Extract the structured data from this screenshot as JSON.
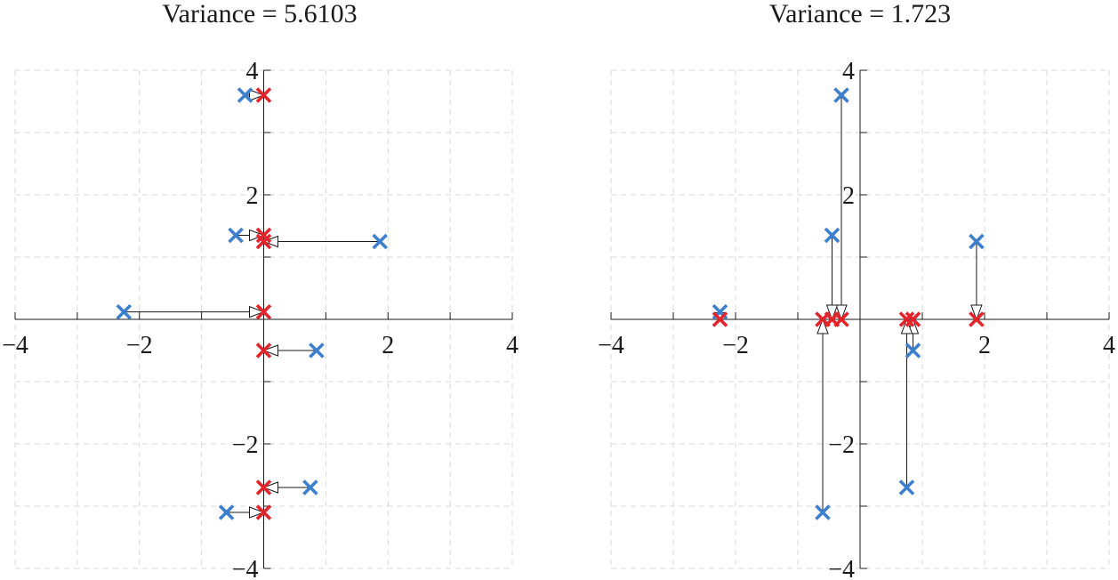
{
  "chart_data": [
    {
      "type": "scatter",
      "title": "Variance = 5.6103",
      "xlim": [
        -4,
        4
      ],
      "ylim": [
        -4,
        4
      ],
      "xticks": [
        -4,
        -2,
        2,
        4
      ],
      "yticks": [
        -4,
        -2,
        2,
        4
      ],
      "xtick_labels": [
        "−4",
        "−2",
        "2",
        "4"
      ],
      "ytick_labels": [
        "−4",
        "−2",
        "2",
        "4"
      ],
      "grid": true,
      "grid_step": 1,
      "series": [
        {
          "marker": "x",
          "color": "#3d7fcf",
          "points": [
            [
              -0.3,
              3.6
            ],
            [
              -0.45,
              1.35
            ],
            [
              1.87,
              1.25
            ],
            [
              -2.25,
              0.12
            ],
            [
              0.85,
              -0.5
            ],
            [
              0.75,
              -2.7
            ],
            [
              -0.6,
              -3.1
            ]
          ]
        },
        {
          "marker": "x",
          "color": "#e3242b",
          "points": [
            [
              0,
              3.6
            ],
            [
              0,
              1.35
            ],
            [
              0,
              1.25
            ],
            [
              0,
              0.12
            ],
            [
              0,
              -0.5
            ],
            [
              0,
              -2.7
            ],
            [
              0,
              -3.1
            ]
          ]
        }
      ],
      "arrows": [
        {
          "from": [
            -0.3,
            3.6
          ],
          "to": [
            0,
            3.6
          ]
        },
        {
          "from": [
            -0.45,
            1.35
          ],
          "to": [
            0,
            1.35
          ]
        },
        {
          "from": [
            1.87,
            1.25
          ],
          "to": [
            0,
            1.25
          ]
        },
        {
          "from": [
            -2.25,
            0.12
          ],
          "to": [
            0,
            0.12
          ]
        },
        {
          "from": [
            0.85,
            -0.5
          ],
          "to": [
            0,
            -0.5
          ]
        },
        {
          "from": [
            0.75,
            -2.7
          ],
          "to": [
            0,
            -2.7
          ]
        },
        {
          "from": [
            -0.6,
            -3.1
          ],
          "to": [
            0,
            -3.1
          ]
        }
      ]
    },
    {
      "type": "scatter",
      "title": "Variance = 1.723",
      "xlim": [
        -4,
        4
      ],
      "ylim": [
        -4,
        4
      ],
      "xticks": [
        -4,
        -2,
        2,
        4
      ],
      "yticks": [
        -4,
        -2,
        2,
        4
      ],
      "xtick_labels": [
        "−4",
        "−2",
        "2",
        "4"
      ],
      "ytick_labels": [
        "−4",
        "−2",
        "2",
        "4"
      ],
      "grid": true,
      "grid_step": 1,
      "series": [
        {
          "marker": "x",
          "color": "#3d7fcf",
          "points": [
            [
              -0.3,
              3.6
            ],
            [
              -0.45,
              1.35
            ],
            [
              1.87,
              1.25
            ],
            [
              -2.25,
              0.12
            ],
            [
              0.85,
              -0.5
            ],
            [
              0.75,
              -2.7
            ],
            [
              -0.6,
              -3.1
            ]
          ]
        },
        {
          "marker": "x",
          "color": "#e3242b",
          "points": [
            [
              -0.3,
              0
            ],
            [
              -0.45,
              0
            ],
            [
              1.87,
              0
            ],
            [
              -2.25,
              0
            ],
            [
              0.85,
              0
            ],
            [
              0.75,
              0
            ],
            [
              -0.6,
              0
            ]
          ]
        }
      ],
      "arrows": [
        {
          "from": [
            -0.3,
            3.6
          ],
          "to": [
            -0.3,
            0
          ]
        },
        {
          "from": [
            -0.45,
            1.35
          ],
          "to": [
            -0.45,
            0
          ]
        },
        {
          "from": [
            1.87,
            1.25
          ],
          "to": [
            1.87,
            0
          ]
        },
        {
          "from": [
            -2.25,
            0.12
          ],
          "to": [
            -2.25,
            0
          ]
        },
        {
          "from": [
            0.85,
            -0.5
          ],
          "to": [
            0.85,
            0
          ]
        },
        {
          "from": [
            0.75,
            -2.7
          ],
          "to": [
            0.75,
            0
          ]
        },
        {
          "from": [
            -0.6,
            -3.1
          ],
          "to": [
            -0.6,
            0
          ]
        }
      ]
    }
  ]
}
